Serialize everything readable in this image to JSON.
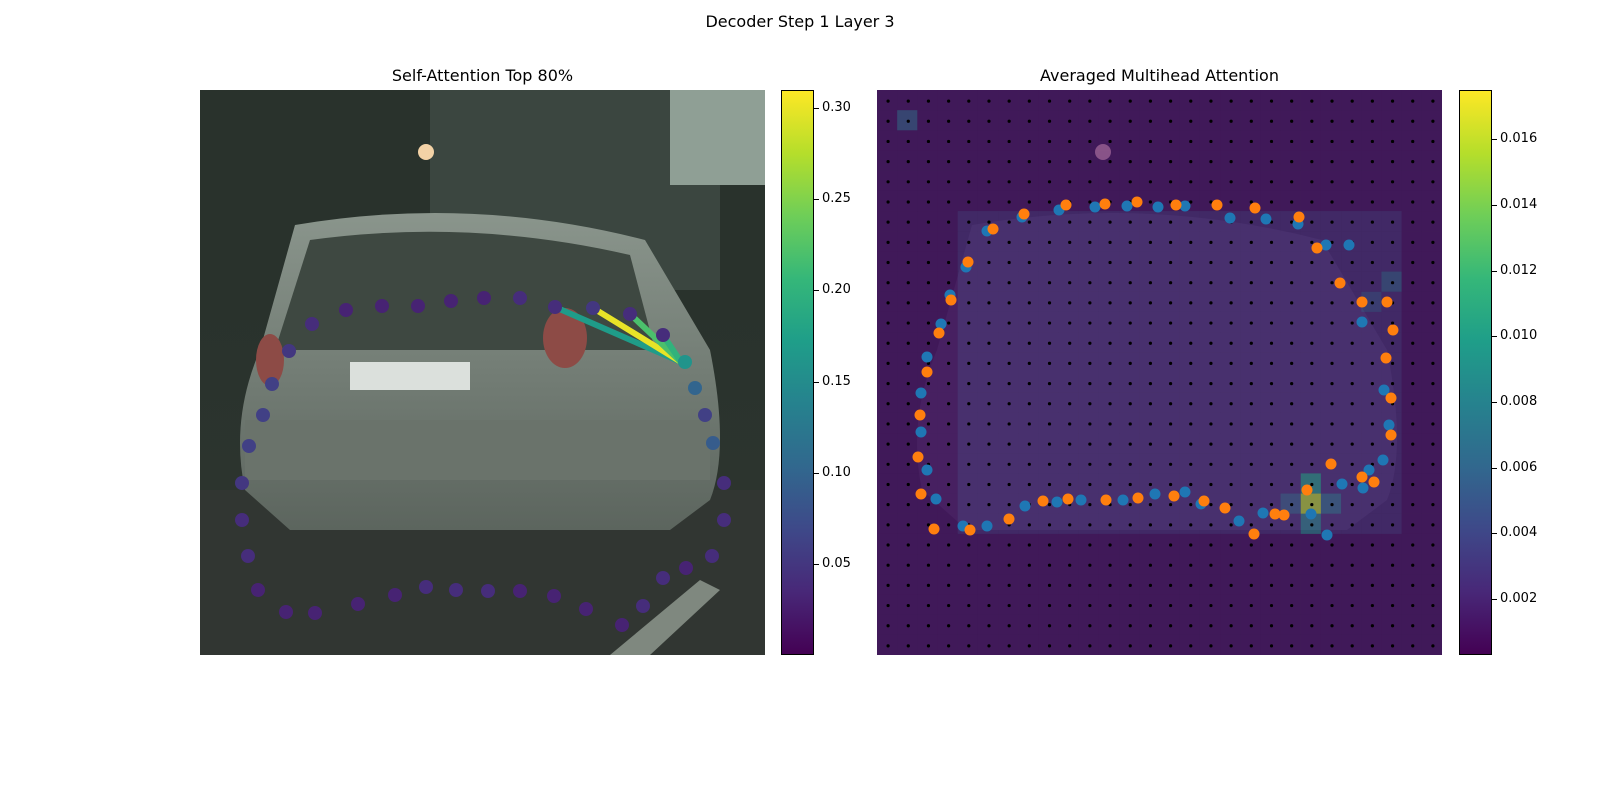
{
  "figure": {
    "title": "Decoder Step 1 Layer 3"
  },
  "left_panel": {
    "title": "Self-Attention Top 80%",
    "colorbar_ticks": [
      "0.05",
      "0.10",
      "0.15",
      "0.20",
      "0.25",
      "0.30"
    ],
    "colorbar_range": [
      0.0,
      0.31
    ],
    "colormap": "viridis"
  },
  "right_panel": {
    "title": "Averaged Multihead Attention",
    "colorbar_ticks": [
      "0.002",
      "0.004",
      "0.006",
      "0.008",
      "0.010",
      "0.012",
      "0.014",
      "0.016"
    ],
    "colorbar_range": [
      0.0003,
      0.0175
    ],
    "colormap": "viridis",
    "point_colors": {
      "prediction": "#1f77b4",
      "reference": "#ff7f0e"
    }
  }
}
